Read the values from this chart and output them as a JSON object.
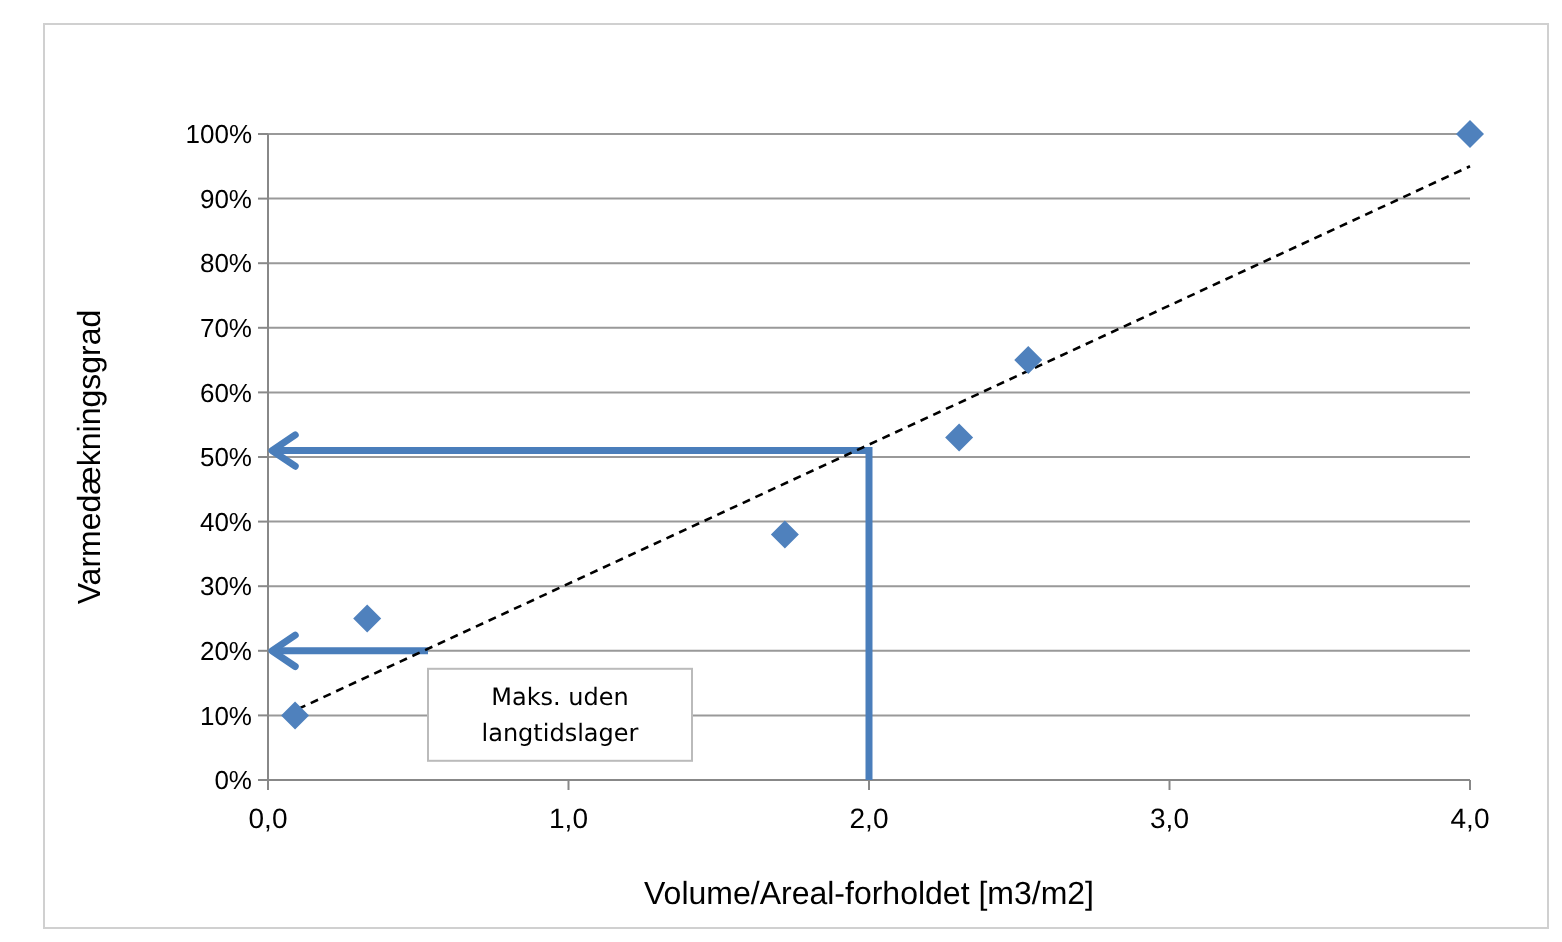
{
  "chart_data": {
    "type": "scatter",
    "xlabel": "Volume/Areal-forholdet [m3/m2]",
    "ylabel": "Varmedækningsgrad",
    "xlim": [
      0,
      4
    ],
    "xticks": [
      {
        "value": 0,
        "label": "0,0"
      },
      {
        "value": 1,
        "label": "1,0"
      },
      {
        "value": 2,
        "label": "2,0"
      },
      {
        "value": 3,
        "label": "3,0"
      },
      {
        "value": 4,
        "label": "4,0"
      }
    ],
    "ylim": [
      0,
      100
    ],
    "yticks": [
      {
        "value": 0,
        "label": "0%"
      },
      {
        "value": 10,
        "label": "10%"
      },
      {
        "value": 20,
        "label": "20%"
      },
      {
        "value": 30,
        "label": "30%"
      },
      {
        "value": 40,
        "label": "40%"
      },
      {
        "value": 50,
        "label": "50%"
      },
      {
        "value": 60,
        "label": "60%"
      },
      {
        "value": 70,
        "label": "70%"
      },
      {
        "value": 80,
        "label": "80%"
      },
      {
        "value": 90,
        "label": "90%"
      },
      {
        "value": 100,
        "label": "100%"
      }
    ],
    "grid": "y",
    "legend": false,
    "series": [
      {
        "type": "line",
        "color": "#000000",
        "line_style": "dashed",
        "marker": "none",
        "x": [
          0.1,
          4.0
        ],
        "values": [
          11,
          95
        ]
      },
      {
        "type": "scatter",
        "color": "#4f81bd",
        "marker": "diamond",
        "x": [
          0.09,
          0.33,
          1.72,
          2.3,
          2.53,
          4.0
        ],
        "values": [
          10,
          25,
          38,
          53,
          65,
          100
        ]
      }
    ],
    "ref_lines": [
      {
        "axis": "x",
        "value": 2.0,
        "color": "#4a7ebb"
      },
      {
        "axis": "y",
        "value": 51,
        "color": "#4a7ebb"
      },
      {
        "axis": "y",
        "value": 20,
        "label": "Maks. uden langtidslager",
        "color": "#4a7ebb"
      }
    ]
  }
}
